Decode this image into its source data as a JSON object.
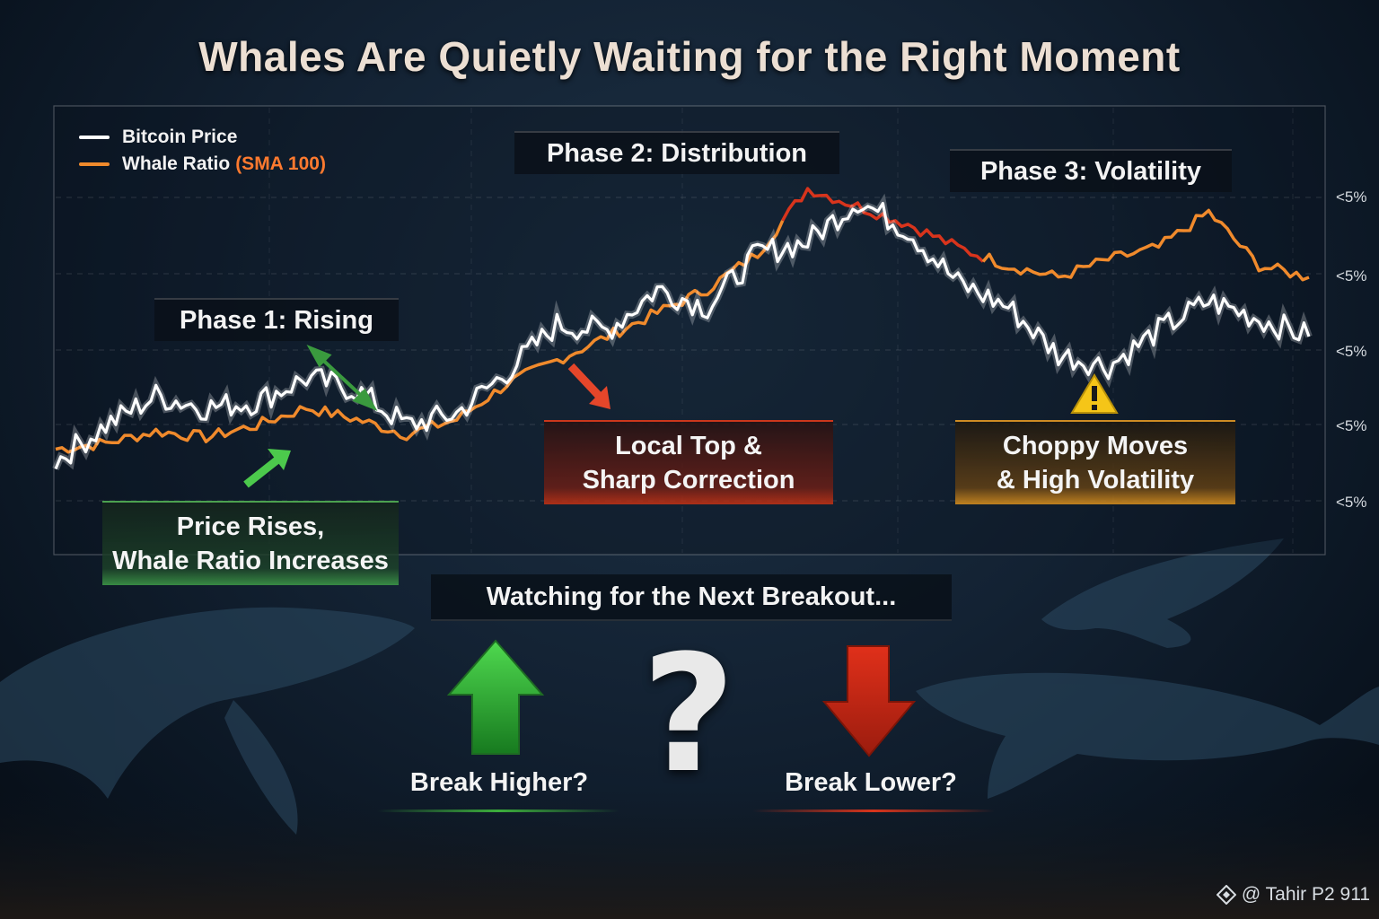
{
  "title": "Whales Are Quietly Waiting for the Right Moment",
  "legend": {
    "price_label": "Bitcoin Price",
    "ratio_label": "Whale Ratio",
    "ratio_sub": "(SMA 100)"
  },
  "phases": {
    "p1": "Phase 1: Rising",
    "p2": "Phase 2: Distribution",
    "p3": "Phase 3: Volatility"
  },
  "notes": {
    "p1_line1": "Price Rises,",
    "p1_line2": "Whale Ratio Increases",
    "p2_line1": "Local Top &",
    "p2_line2": "Sharp Correction",
    "p3_line1": "Choppy Moves",
    "p3_line2": "& High Volatility"
  },
  "breakout": {
    "heading": "Watching for the Next Breakout...",
    "higher": "Break Higher?",
    "lower": "Break Lower?",
    "question": "?"
  },
  "credit": "@ Tahir P2 911",
  "colors": {
    "price": "#ffffff",
    "ratio": "#f08a2c",
    "ratio_decline": "#d8341c",
    "up": "#2fa83a",
    "down": "#d8341c",
    "warning": "#f5c518"
  },
  "icons": [
    "arrow-up-icon",
    "arrow-down-icon",
    "question-mark-icon",
    "warning-icon",
    "diamond-logo-icon"
  ],
  "chart_data": {
    "type": "line",
    "legend_position": "top-left",
    "grid": true,
    "y_tick_labels": [
      "<5%",
      "<5%",
      "<5%",
      "<5%",
      "<5%"
    ],
    "x": [
      0,
      4,
      8,
      12,
      16,
      20,
      24,
      28,
      32,
      36,
      40,
      44,
      48,
      52,
      56,
      60,
      64,
      68,
      72,
      76,
      80,
      84,
      88,
      92,
      96,
      100
    ],
    "series": [
      {
        "name": "Bitcoin Price",
        "values": [
          8,
          20,
          30,
          26,
          28,
          36,
          32,
          20,
          24,
          38,
          54,
          52,
          66,
          60,
          78,
          82,
          96,
          86,
          68,
          60,
          44,
          40,
          52,
          62,
          56,
          50
        ]
      },
      {
        "name": "Whale Ratio (SMA 100)",
        "values": [
          12,
          14,
          18,
          16,
          20,
          26,
          22,
          17,
          22,
          34,
          42,
          50,
          58,
          66,
          78,
          100,
          94,
          88,
          80,
          74,
          70,
          76,
          80,
          92,
          74,
          70
        ]
      }
    ]
  }
}
